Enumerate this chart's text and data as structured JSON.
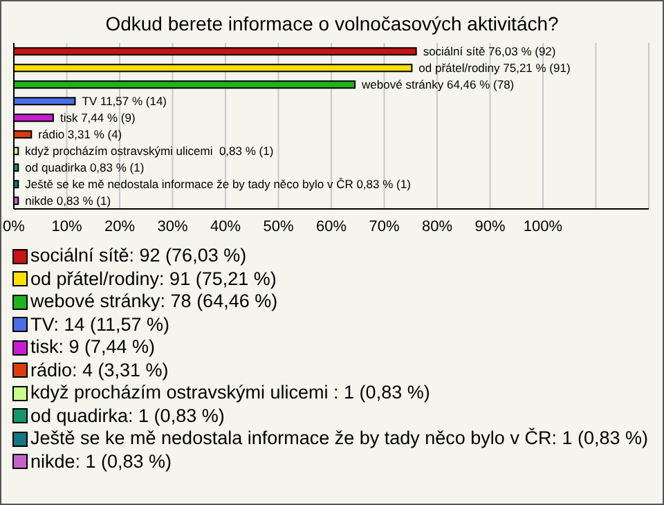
{
  "chart_data": {
    "type": "bar",
    "orientation": "horizontal",
    "title": "Odkud berete informace o volnočasových aktivitách?",
    "categories": [
      "sociální sítě",
      "od přátel/rodiny",
      "webové stránky",
      "TV",
      "tisk",
      "rádio",
      "když procházím ostravskými ulicemi ",
      "od quadirka",
      "Ještě se ke mě nedostala informace že by tady něco bylo v ČR",
      "nikde"
    ],
    "values": [
      76.03,
      75.21,
      64.46,
      11.57,
      7.44,
      3.31,
      0.83,
      0.83,
      0.83,
      0.83
    ],
    "colors": [
      "#c81414",
      "#ffe000",
      "#1eb41e",
      "#4a6ee6",
      "#c81ed2",
      "#dc3c0a",
      "#c8ff8c",
      "#14966e",
      "#147882",
      "#c864c8"
    ],
    "value_labels": [
      "76,03 % (92)",
      "75,21 % (91)",
      "64,46 % (78)",
      "11,57 % (14)",
      "7,44 % (9)",
      "3,31 % (4)",
      "0,83 % (1)",
      "0,83 % (1)",
      "0,83 % (1)",
      "0,83 % (1)"
    ],
    "xlim": [
      0,
      120
    ],
    "xticks": [
      {
        "value": 0,
        "label": "0%"
      },
      {
        "value": 10,
        "label": "10%"
      },
      {
        "value": 20,
        "label": "20%"
      },
      {
        "value": 30,
        "label": "30%"
      },
      {
        "value": 40,
        "label": "40%"
      },
      {
        "value": 50,
        "label": "50%"
      },
      {
        "value": 60,
        "label": "60%"
      },
      {
        "value": 70,
        "label": "70%"
      },
      {
        "value": 80,
        "label": "80%"
      },
      {
        "value": 90,
        "label": "90%"
      },
      {
        "value": 100,
        "label": "100%"
      },
      {
        "value": 110,
        "label": null
      },
      {
        "value": 120,
        "label": null
      }
    ],
    "tick_labels": "x",
    "grid": "x",
    "annotations": [
      ": 92 (76,03 %)",
      ": 91 (75,21 %)",
      ": 78 (64,46 %)",
      ": 14 (11,57 %)",
      ": 9 (7,44 %)",
      ": 4 (3,31 %)",
      ": 1 (0,83 %)",
      ": 1 (0,83 %)",
      ": 1 (0,83 %)",
      ": 1 (0,83 %)"
    ]
  }
}
